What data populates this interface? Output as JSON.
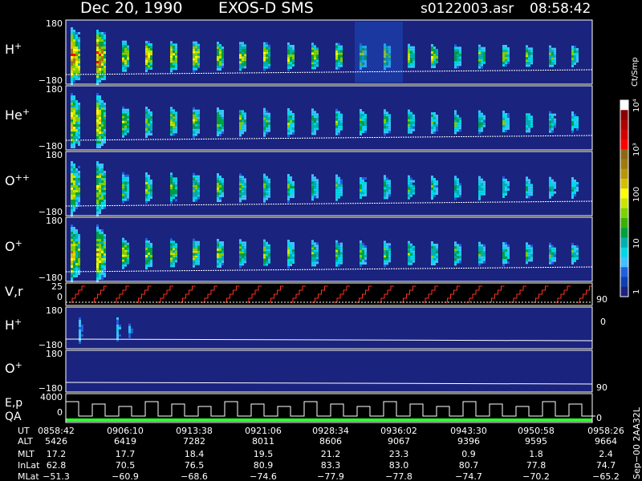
{
  "header": {
    "date": "Dec 20, 1990",
    "mission": "EXOS-D SMS",
    "file": "s0122003.asr",
    "time": "08:58:42"
  },
  "colorbar": {
    "unit": "Ct/Smp",
    "ticks": [
      "10⁴",
      "10³",
      "100",
      "10",
      "1"
    ],
    "colors": [
      "#ffffff",
      "#8b0000",
      "#b00000",
      "#d40000",
      "#ff0000",
      "#8b6914",
      "#a07a10",
      "#b8960a",
      "#d4c000",
      "#ffff00",
      "#c8e600",
      "#7fd000",
      "#3cb000",
      "#00a040",
      "#00b0b0",
      "#00d8e8",
      "#40c0ff",
      "#2060e0",
      "#1040b0",
      "#1a237e"
    ]
  },
  "panels": {
    "h_plus": {
      "label": "H",
      "sup": "+",
      "ymax": "180",
      "ymin": "−180"
    },
    "he_plus": {
      "label": "He",
      "sup": "+",
      "ymax": "180",
      "ymin": "−180"
    },
    "o_pp": {
      "label": "O",
      "sup": "++",
      "ymax": "180",
      "ymin": "−180"
    },
    "o_plus": {
      "label": "O",
      "sup": "+",
      "ymax": "180",
      "ymin": "−180"
    },
    "vr": {
      "label": "V,r",
      "ymax": "25",
      "ymid": "0",
      "rmax": "90",
      "rmin": "0"
    },
    "h_plus2": {
      "label": "H",
      "sup": "+",
      "ymax": "180",
      "ymin": "−180"
    },
    "o_plus2": {
      "label": "O",
      "sup": "+",
      "ymax": "180",
      "ymin": "−180",
      "rlabel": "90"
    },
    "ep": {
      "label1": "E,p",
      "label2": "QA",
      "ymax": "4000",
      "ymid": "0",
      "rlabel": "0"
    }
  },
  "footer": {
    "labels": [
      "UT",
      "ALT",
      "MLT",
      "InLat",
      "MLat"
    ],
    "columns": [
      [
        "0858:42",
        "5426",
        "17.2",
        "62.8",
        "−51.3"
      ],
      [
        "0906:10",
        "6419",
        "17.7",
        "70.5",
        "−60.9"
      ],
      [
        "0913:38",
        "7282",
        "18.4",
        "76.5",
        "−68.6"
      ],
      [
        "0921:06",
        "8011",
        "19.5",
        "80.9",
        "−74.6"
      ],
      [
        "0928:34",
        "8606",
        "21.2",
        "83.3",
        "−77.9"
      ],
      [
        "0936:02",
        "9067",
        "23.3",
        "83.0",
        "−77.8"
      ],
      [
        "0943:30",
        "9396",
        "0.9",
        "80.7",
        "−74.7"
      ],
      [
        "0950:58",
        "9595",
        "1.8",
        "77.8",
        "−70.2"
      ],
      [
        "0958:26",
        "9664",
        "2.4",
        "74.7",
        "−65.2"
      ]
    ],
    "side_note": "Sep−00  2AA32L"
  },
  "chart_data": {
    "type": "heatmap",
    "title": "Dec 20, 1990   EXOS-D SMS",
    "x_ticks": [
      "0858:42",
      "0906:10",
      "0913:38",
      "0921:06",
      "0928:34",
      "0936:02",
      "0943:30",
      "0950:58",
      "0958:26"
    ],
    "panels": [
      "H+",
      "He+",
      "O++",
      "O+",
      "V,r",
      "H+",
      "O+",
      "E,p QA"
    ],
    "pitch_angle_range": [
      -180,
      180
    ],
    "vr_range": [
      0,
      25
    ],
    "energy_range": [
      0,
      4000
    ],
    "colorbar_range": [
      1,
      10000
    ],
    "colorbar_scale": "log",
    "colorbar_unit": "Ct/Smp"
  }
}
